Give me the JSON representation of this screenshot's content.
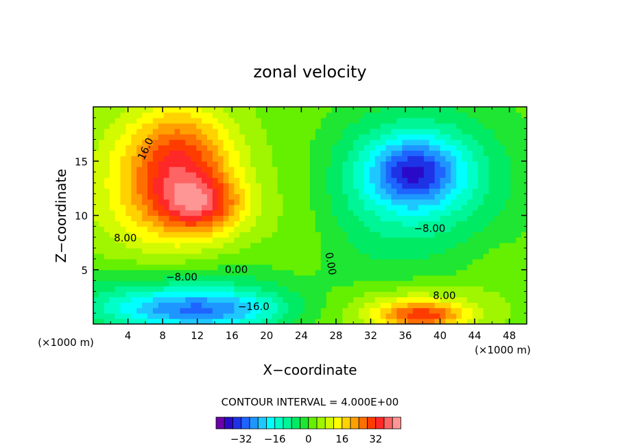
{
  "chart_data": {
    "type": "heatmap",
    "title": "zonal velocity",
    "xlabel": "X−coordinate",
    "ylabel": "Z−coordinate",
    "x_units": "(×1000 m)",
    "xlim": [
      0,
      50
    ],
    "ylim": [
      0,
      20
    ],
    "x_ticks": [
      4,
      8,
      12,
      16,
      20,
      24,
      28,
      32,
      36,
      40,
      44,
      48
    ],
    "y_ticks": [
      5,
      10,
      15
    ],
    "contour_interval_text": "CONTOUR INTERVAL = 4.000E+00",
    "contour_labels": [
      {
        "text": "16.0",
        "x": 6.4,
        "y": 16.0,
        "rotate": -65
      },
      {
        "text": "8.00",
        "x": 3.7,
        "y": 7.6
      },
      {
        "text": "0.00",
        "x": 16.5,
        "y": 4.7
      },
      {
        "text": "−8.00",
        "x": 10.2,
        "y": 4.0
      },
      {
        "text": "−16.0",
        "x": 18.5,
        "y": 1.3
      },
      {
        "text": "0.00",
        "x": 27.0,
        "y": 5.5,
        "rotate": 80
      },
      {
        "text": "−8.00",
        "x": 38.8,
        "y": 8.5
      },
      {
        "text": "8.00",
        "x": 40.5,
        "y": 2.3
      }
    ],
    "field_centers": [
      {
        "x": 10,
        "y": 15,
        "value": 26,
        "rx": 6,
        "ry": 5
      },
      {
        "x": 12.5,
        "y": 11,
        "value": 24,
        "rx": 5,
        "ry": 2.5
      },
      {
        "x": 8,
        "y": 12,
        "value": 16,
        "rx": 9,
        "ry": 7
      },
      {
        "x": 37,
        "y": 14,
        "value": -22,
        "rx": 5,
        "ry": 3
      },
      {
        "x": 38,
        "y": 14,
        "value": -14,
        "rx": 10,
        "ry": 6
      },
      {
        "x": 33,
        "y": 10,
        "value": -4,
        "rx": 12,
        "ry": 8
      },
      {
        "x": 12,
        "y": 1.2,
        "value": -22,
        "rx": 10,
        "ry": 1.8
      },
      {
        "x": 10,
        "y": 2.5,
        "value": -12,
        "rx": 15,
        "ry": 3
      },
      {
        "x": 38,
        "y": 0.8,
        "value": 26,
        "rx": 5,
        "ry": 1.2
      },
      {
        "x": 36,
        "y": 1.5,
        "value": 14,
        "rx": 9,
        "ry": 2.2
      },
      {
        "x": 46,
        "y": 5,
        "value": 4,
        "rx": 4,
        "ry": 3
      },
      {
        "x": 24,
        "y": 9,
        "value": 6,
        "rx": 5,
        "ry": 10
      }
    ],
    "colorbar": {
      "ticks": [
        -32,
        -16,
        0,
        16,
        32
      ],
      "tick_labels": [
        "−32",
        "−16",
        "0",
        "16",
        "32"
      ],
      "colors": [
        "#6a00a8",
        "#2a0ac8",
        "#1e32e6",
        "#1e64ff",
        "#1e96ff",
        "#1ec8ff",
        "#00ffff",
        "#00ffc8",
        "#00f596",
        "#00ea64",
        "#1ee632",
        "#64f000",
        "#a0f500",
        "#d2fa00",
        "#ffff00",
        "#ffd200",
        "#ffa000",
        "#ff6e00",
        "#ff3c00",
        "#ff2828",
        "#ff6464",
        "#ff9696"
      ]
    }
  }
}
